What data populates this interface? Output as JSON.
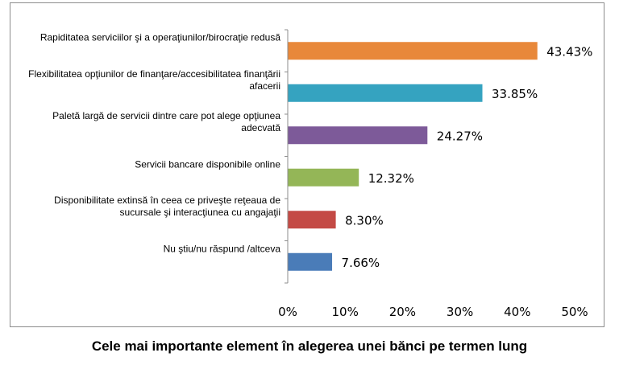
{
  "chart_data": {
    "type": "bar",
    "orientation": "horizontal",
    "title": "Cele mai importante element în alegerea unei bănci pe termen lung",
    "xlim": [
      0,
      50
    ],
    "x_ticks": [
      "0%",
      "10%",
      "20%",
      "30%",
      "40%",
      "50%"
    ],
    "grid": false,
    "legend": "none",
    "categories": [
      "Rapiditatea serviciilor şi a operaţiunilor/birocraţie redusă",
      "Flexibilitatea opţiunilor de finanţare/accesibilitatea finanţării afacerii",
      "Paletă largă de servicii dintre care pot alege opţiunea adecvată",
      "Servicii bancare disponibile online",
      "Disponibilitate extinsă în ceea ce priveşte reţeaua de sucursale şi interacţiunea cu angajaţii",
      "Nu ştiu/nu răspund /altceva"
    ],
    "values": [
      43.43,
      33.85,
      24.27,
      12.32,
      8.3,
      7.66
    ],
    "value_labels": [
      "43.43%",
      "33.85%",
      "24.27%",
      "12.32%",
      "8.30%",
      "7.66%"
    ],
    "colors": [
      "#E8883A",
      "#35A3C0",
      "#7D5A99",
      "#94B657",
      "#C44A45",
      "#4A7CB8"
    ]
  }
}
